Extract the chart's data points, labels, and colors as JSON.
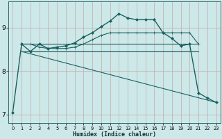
{
  "xlabel": "Humidex (Indice chaleur)",
  "bg_color": "#cce8e8",
  "grid_color": "#b0d0d0",
  "line_color": "#1a6060",
  "xlim": [
    -0.5,
    23.5
  ],
  "ylim": [
    6.8,
    9.6
  ],
  "yticks": [
    7,
    8,
    9
  ],
  "xticks": [
    0,
    1,
    2,
    3,
    4,
    5,
    6,
    7,
    8,
    9,
    10,
    11,
    12,
    13,
    14,
    15,
    16,
    17,
    18,
    19,
    20,
    21,
    22,
    23
  ],
  "series": [
    {
      "x": [
        0,
        1,
        2,
        3,
        4,
        5,
        6,
        7,
        8,
        9,
        10,
        11,
        12,
        13,
        14,
        15,
        16,
        17,
        18,
        19,
        20,
        21,
        22,
        23
      ],
      "y": [
        7.05,
        8.62,
        8.45,
        8.62,
        8.52,
        8.55,
        8.58,
        8.65,
        8.78,
        8.88,
        9.02,
        9.15,
        9.32,
        9.22,
        9.18,
        9.18,
        9.18,
        8.88,
        8.75,
        8.58,
        8.62,
        7.5,
        7.38,
        7.28
      ],
      "marker": "D",
      "markersize": 2.0,
      "linewidth": 1.0
    },
    {
      "x": [
        1,
        2,
        3,
        4,
        5,
        6,
        7,
        8,
        9,
        10,
        11,
        12,
        13,
        14,
        15,
        16,
        17,
        18,
        19,
        20,
        21
      ],
      "y": [
        8.62,
        8.62,
        8.55,
        8.52,
        8.52,
        8.52,
        8.55,
        8.62,
        8.72,
        8.82,
        8.88,
        8.88,
        8.88,
        8.88,
        8.88,
        8.88,
        8.88,
        8.88,
        8.88,
        8.88,
        8.62
      ],
      "marker": "+",
      "markersize": 2.5,
      "linewidth": 0.8
    },
    {
      "x": [
        1,
        21
      ],
      "y": [
        8.62,
        8.62
      ],
      "marker": null,
      "linewidth": 0.8
    },
    {
      "x": [
        1,
        21
      ],
      "y": [
        8.45,
        8.45
      ],
      "marker": null,
      "linewidth": 0.8
    },
    {
      "x": [
        1,
        23
      ],
      "y": [
        8.45,
        7.28
      ],
      "marker": null,
      "linewidth": 0.8
    }
  ]
}
